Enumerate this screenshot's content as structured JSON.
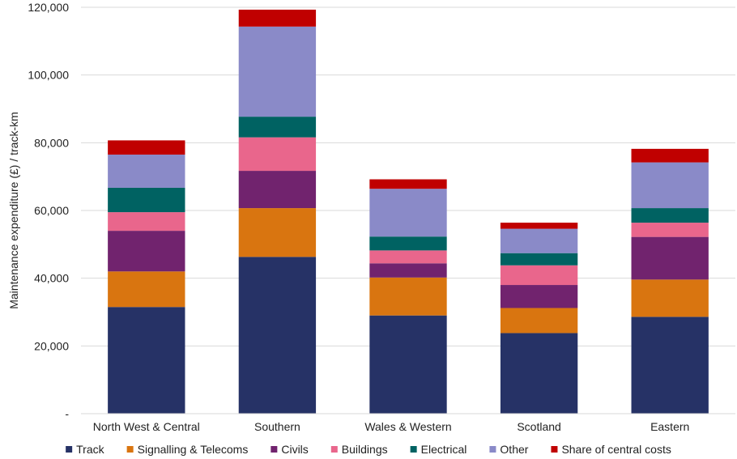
{
  "chart_data": {
    "type": "bar",
    "stacked": true,
    "ylabel": "Maintenance expenditure (£) / track-km",
    "ylim": [
      0,
      120000
    ],
    "y_ticks": [
      0,
      20000,
      40000,
      60000,
      80000,
      100000,
      120000
    ],
    "y_tick_labels": [
      "-",
      "20,000",
      "40,000",
      "60,000",
      "80,000",
      "100,000",
      "120,000"
    ],
    "grid": true,
    "legend_position": "bottom",
    "categories": [
      "North West & Central",
      "Southern",
      "Wales & Western",
      "Scotland",
      "Eastern"
    ],
    "series": [
      {
        "name": "Track",
        "color": "#263266",
        "values": [
          31500,
          46300,
          29000,
          23800,
          28600
        ]
      },
      {
        "name": "Signalling & Telecoms",
        "color": "#D97510",
        "values": [
          10500,
          14400,
          11200,
          7400,
          11000
        ]
      },
      {
        "name": "Civils",
        "color": "#71236E",
        "values": [
          12000,
          11000,
          4200,
          6800,
          12600
        ]
      },
      {
        "name": "Buildings",
        "color": "#E9668C",
        "values": [
          5500,
          9900,
          3800,
          5800,
          4200
        ]
      },
      {
        "name": "Electrical",
        "color": "#006262",
        "values": [
          7200,
          6100,
          4100,
          3600,
          4300
        ]
      },
      {
        "name": "Other",
        "color": "#8A8AC8",
        "values": [
          9800,
          26600,
          14100,
          7200,
          13500
        ]
      },
      {
        "name": "Share of central costs",
        "color": "#C00000",
        "values": [
          4200,
          5000,
          2800,
          1800,
          4000
        ]
      }
    ]
  }
}
